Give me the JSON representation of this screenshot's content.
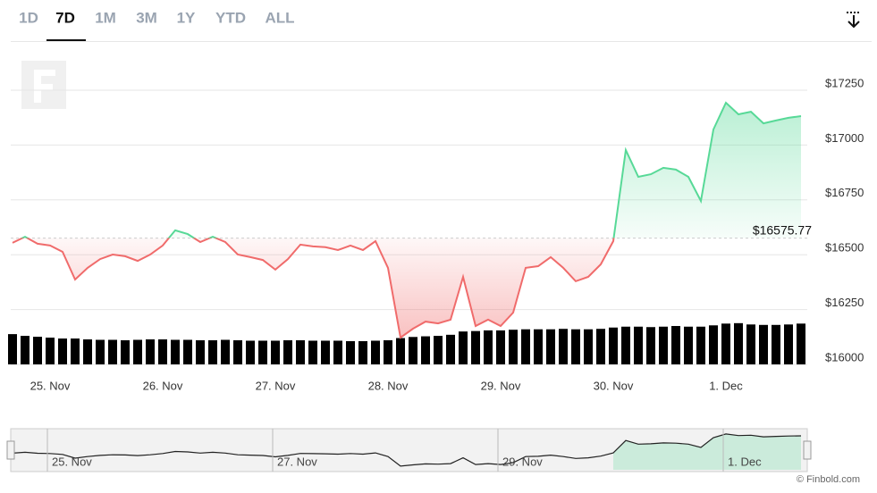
{
  "ui": {
    "range_buttons": [
      "1D",
      "7D",
      "1M",
      "3M",
      "1Y",
      "YTD",
      "ALL"
    ],
    "selected_index": 1,
    "credit": "© Finbold.com"
  },
  "chart_data": {
    "type": "line",
    "categories": [
      null,
      null,
      null,
      "25. Nov",
      null,
      null,
      null,
      null,
      null,
      null,
      null,
      null,
      "26. Nov",
      null,
      null,
      null,
      null,
      null,
      null,
      null,
      null,
      "27. Nov",
      null,
      null,
      null,
      null,
      null,
      null,
      null,
      null,
      "28. Nov",
      null,
      null,
      null,
      null,
      null,
      null,
      null,
      null,
      "29. Nov",
      null,
      null,
      null,
      null,
      null,
      null,
      null,
      null,
      "30. Nov",
      null,
      null,
      null,
      null,
      null,
      null,
      null,
      null,
      "1. Dec",
      null,
      null,
      null,
      null,
      null,
      null
    ],
    "series": [
      {
        "name": "Price",
        "color": "#57d997",
        "down_color": "#f06b6b",
        "values": [
          16554,
          16582,
          16550,
          16542,
          16513,
          16387,
          16440,
          16480,
          16501,
          16493,
          16472,
          16501,
          16542,
          16611,
          16594,
          16558,
          16582,
          16558,
          16501,
          16489,
          16476,
          16432,
          16480,
          16546,
          16538,
          16534,
          16521,
          16542,
          16521,
          16562,
          16440,
          16122,
          16163,
          16195,
          16187,
          16204,
          16399,
          16175,
          16204,
          16175,
          16236,
          16440,
          16448,
          16489,
          16440,
          16379,
          16399,
          16456,
          16562,
          16977,
          16855,
          16867,
          16896,
          16888,
          16855,
          16745,
          17071,
          17193,
          17140,
          17152,
          17099,
          17112,
          17124,
          17132
        ]
      },
      {
        "name": "Volume",
        "type": "bar",
        "color": "#000000",
        "values": [
          16138,
          16130,
          16126,
          16122,
          16118,
          16118,
          16114,
          16112,
          16112,
          16110,
          16112,
          16114,
          16114,
          16112,
          16112,
          16110,
          16110,
          16112,
          16110,
          16108,
          16108,
          16108,
          16110,
          16110,
          16108,
          16108,
          16108,
          16106,
          16106,
          16108,
          16110,
          16120,
          16125,
          16128,
          16130,
          16135,
          16150,
          16152,
          16155,
          16155,
          16158,
          16160,
          16160,
          16160,
          16162,
          16160,
          16160,
          16162,
          16168,
          16172,
          16172,
          16170,
          16172,
          16175,
          16172,
          16172,
          16178,
          16186,
          16188,
          16182,
          16180,
          16180,
          16182,
          16186
        ]
      }
    ],
    "baseline": {
      "value": 16575.77,
      "label": "$16575.77"
    },
    "ylim": [
      16000,
      17250
    ],
    "yticks": [
      {
        "value": 16000,
        "label": "$16000"
      },
      {
        "value": 16250,
        "label": "$16250"
      },
      {
        "value": 16500,
        "label": "$16500"
      },
      {
        "value": 16750,
        "label": "$16750"
      },
      {
        "value": 17000,
        "label": "$17000"
      },
      {
        "value": 17250,
        "label": "$17250"
      }
    ],
    "grid": true,
    "navigator_labels": [
      3,
      21,
      39,
      57
    ]
  }
}
